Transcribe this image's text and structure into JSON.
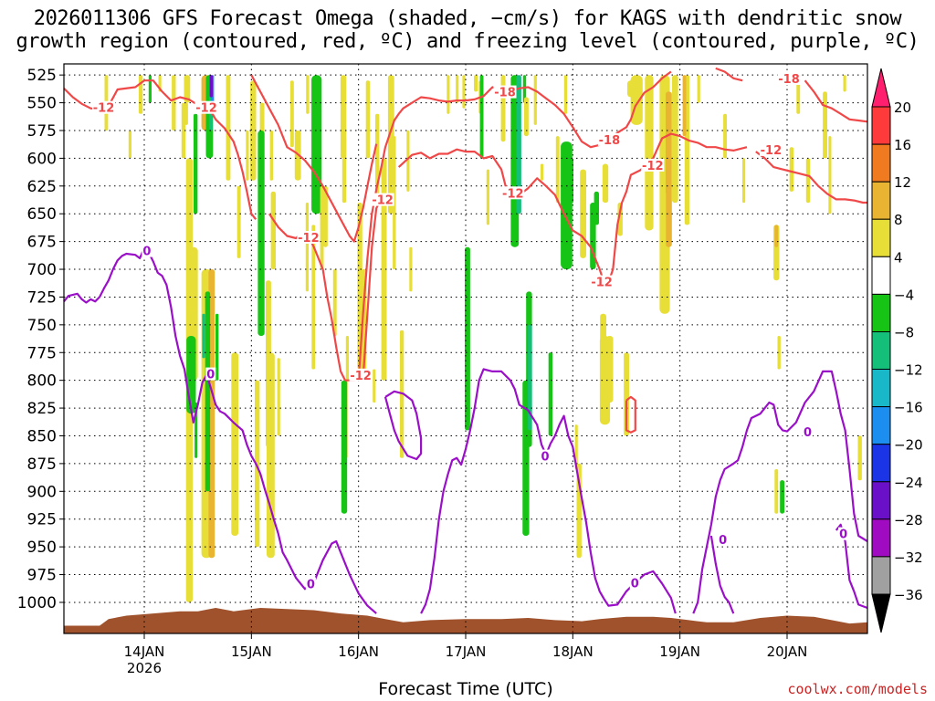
{
  "chart_data": {
    "type": "heatmap",
    "title_line1": "2026011306 GFS Forecast Omega (shaded, −cm/s) for KAGS with dendritic snow",
    "title_line2": "growth region (contoured, red, ºC) and freezing level (contoured, purple, ºC)",
    "xlabel": "Forecast Time (UTC)",
    "ylabel": "",
    "credit": "coolwx.com/models",
    "x_ticks": [
      {
        "label": "14JAN",
        "sub": "2026",
        "hours": 18
      },
      {
        "label": "15JAN",
        "sub": "",
        "hours": 42
      },
      {
        "label": "16JAN",
        "sub": "",
        "hours": 66
      },
      {
        "label": "17JAN",
        "sub": "",
        "hours": 90
      },
      {
        "label": "18JAN",
        "sub": "",
        "hours": 114
      },
      {
        "label": "19JAN",
        "sub": "",
        "hours": 138
      },
      {
        "label": "20JAN",
        "sub": "",
        "hours": 162
      }
    ],
    "xlim_hours": [
      0,
      180
    ],
    "y_ticks": [
      "525",
      "550",
      "575",
      "600",
      "625",
      "650",
      "675",
      "700",
      "725",
      "750",
      "775",
      "800",
      "825",
      "850",
      "875",
      "900",
      "925",
      "950",
      "975",
      "1000"
    ],
    "colorbar": {
      "labels": [
        "20",
        "16",
        "12",
        "8",
        "4",
        "−4",
        "−8",
        "−12",
        "−16",
        "−20",
        "−24",
        "−28",
        "−32",
        "−36"
      ],
      "colors": [
        "#ff1f6e",
        "#ff3a3a",
        "#f07a20",
        "#e8b432",
        "#e8de38",
        "#ffffff",
        "#16c416",
        "#14bf7a",
        "#18b8c8",
        "#1c8ef0",
        "#1a34e6",
        "#6a10c8",
        "#a00ac0",
        "#a0a0a0"
      ]
    },
    "contours": {
      "dgz": {
        "color": "#f04848",
        "labels": [
          {
            "text": "-12",
            "h": 8.9,
            "p": 555
          },
          {
            "text": "-12",
            "h": 31.9,
            "p": 555
          },
          {
            "text": "-12",
            "h": 54.8,
            "p": 672
          },
          {
            "text": "-12",
            "h": 71.4,
            "p": 638
          },
          {
            "text": "-12",
            "h": 66.5,
            "p": 796
          },
          {
            "text": "-18",
            "h": 98.8,
            "p": 541
          },
          {
            "text": "-18",
            "h": 122.2,
            "p": 584
          },
          {
            "text": "-12",
            "h": 100.6,
            "p": 632
          },
          {
            "text": "-12",
            "h": 131.9,
            "p": 607
          },
          {
            "text": "-12",
            "h": 120.5,
            "p": 712
          },
          {
            "text": "-12",
            "h": 158.4,
            "p": 593
          },
          {
            "text": "-18",
            "h": 162.4,
            "p": 529
          }
        ]
      },
      "freezing": {
        "color": "#9a10c8",
        "labels": [
          {
            "text": "0",
            "h": 18.6,
            "p": 684
          },
          {
            "text": "0",
            "h": 32.9,
            "p": 795
          },
          {
            "text": "0",
            "h": 55.3,
            "p": 984
          },
          {
            "text": "0",
            "h": 107.8,
            "p": 869
          },
          {
            "text": "0",
            "h": 127.9,
            "p": 983
          },
          {
            "text": "0",
            "h": 147.6,
            "p": 944
          },
          {
            "text": "0",
            "h": 166.6,
            "p": 847
          },
          {
            "text": "0",
            "h": 174.6,
            "p": 939
          }
        ]
      }
    }
  }
}
